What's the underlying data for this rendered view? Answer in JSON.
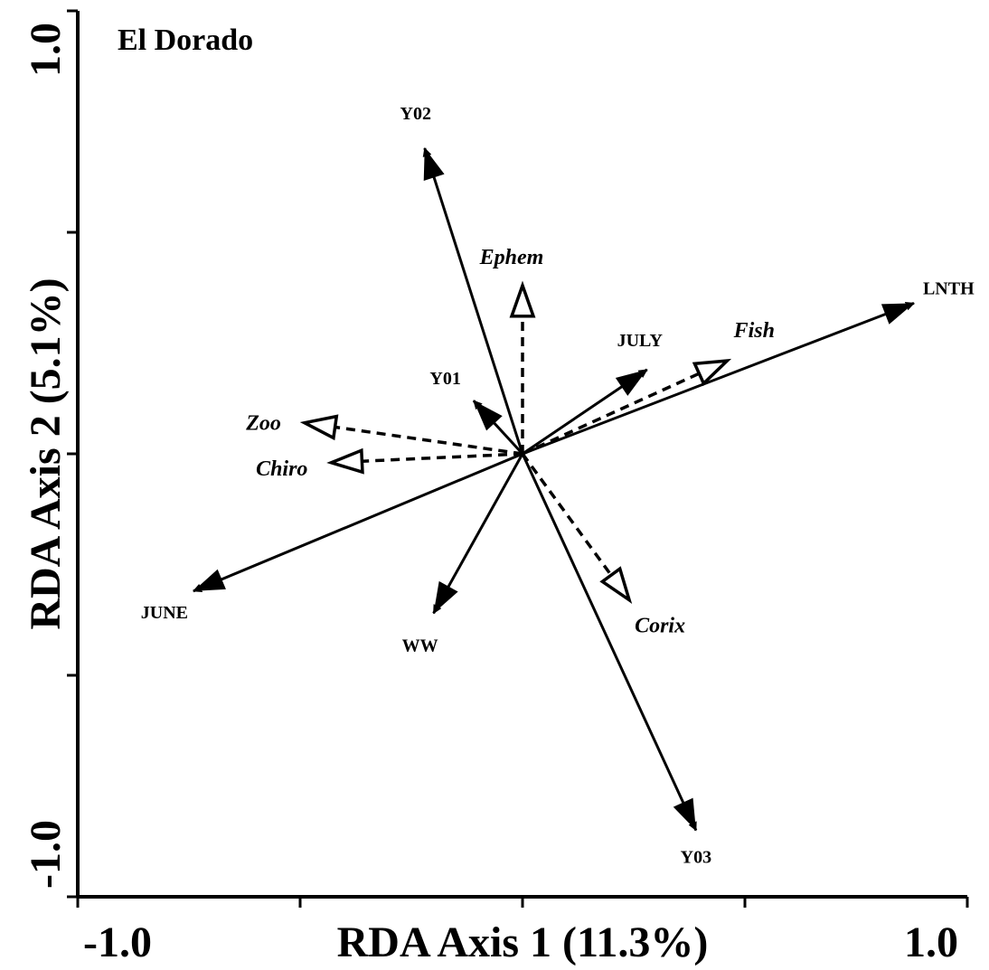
{
  "chart_data": {
    "type": "biplot",
    "title": "El Dorado",
    "xlabel": "RDA Axis 1 (11.3%)",
    "ylabel": "RDA Axis 2 (5.1%)",
    "xlim": [
      -1.0,
      1.0
    ],
    "ylim": [
      -1.0,
      1.0
    ],
    "x_tick_labels": [
      "-1.0",
      "1.0"
    ],
    "y_tick_labels": [
      "-1.0",
      "1.0"
    ],
    "x_ticks": [
      -1.0,
      -0.5,
      0.0,
      0.5,
      1.0
    ],
    "y_ticks": [
      -1.0,
      -0.5,
      0.0,
      0.5,
      1.0
    ],
    "grid": false,
    "legend": "none",
    "series": [
      {
        "name": "",
        "style": "solid-filled-arrow",
        "vectors": [
          {
            "label": "Y02",
            "x": -0.22,
            "y": 0.69
          },
          {
            "label": "Y01",
            "x": -0.11,
            "y": 0.12
          },
          {
            "label": "JULY",
            "x": 0.28,
            "y": 0.19
          },
          {
            "label": "LNTH",
            "x": 0.88,
            "y": 0.34
          },
          {
            "label": "JUNE",
            "x": -0.74,
            "y": -0.31
          },
          {
            "label": "WW",
            "x": -0.2,
            "y": -0.36
          },
          {
            "label": "Y03",
            "x": 0.39,
            "y": -0.85
          }
        ]
      },
      {
        "name": "",
        "style": "dashed-open-arrow",
        "vectors": [
          {
            "label": "Ephem",
            "x": 0.0,
            "y": 0.38
          },
          {
            "label": "Fish",
            "x": 0.46,
            "y": 0.21
          },
          {
            "label": "Zoo",
            "x": -0.49,
            "y": 0.07
          },
          {
            "label": "Chiro",
            "x": -0.43,
            "y": -0.02
          },
          {
            "label": "Corix",
            "x": 0.24,
            "y": -0.33
          }
        ]
      }
    ]
  }
}
